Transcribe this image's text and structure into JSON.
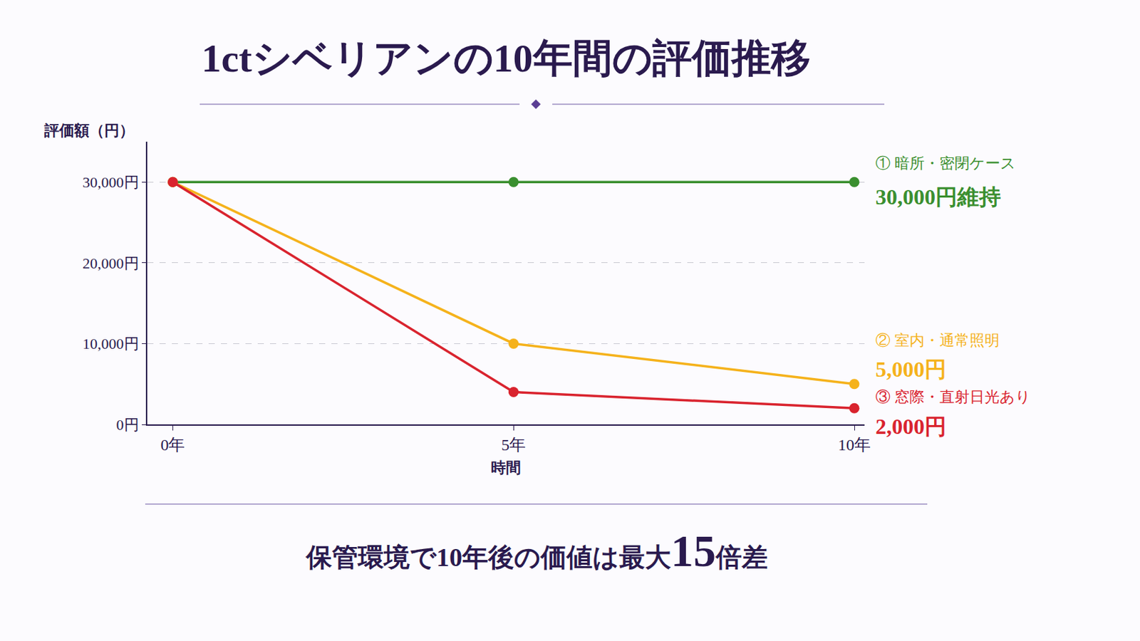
{
  "chart_data": {
    "type": "line",
    "title": "1ctシベリアンの10年間の評価推移",
    "x_label": "時間",
    "y_label": "評価額（円）",
    "categories": [
      "0年",
      "5年",
      "10年"
    ],
    "series": [
      {
        "name": "① 暗所・密閉ケース",
        "end_label": "30,000円維持",
        "color": "#3a8f2f",
        "values": [
          30000,
          30000,
          30000
        ]
      },
      {
        "name": "② 室内・通常照明",
        "end_label": "5,000円",
        "color": "#f5b21b",
        "values": [
          30000,
          10000,
          5000
        ]
      },
      {
        "name": "③ 窓際・直射日光あり",
        "end_label": "2,000円",
        "color": "#d9232e",
        "values": [
          30000,
          4000,
          2000
        ]
      }
    ],
    "ylim": [
      0,
      35000
    ],
    "yticks": [
      {
        "value": 0,
        "label": "0円"
      },
      {
        "value": 10000,
        "label": "10,000円"
      },
      {
        "value": 20000,
        "label": "20,000円"
      },
      {
        "value": 30000,
        "label": "30,000円"
      }
    ],
    "grid": true,
    "marker": "circle",
    "footer": {
      "before": "保管環境で10年後の価値は最大",
      "emphasis": "15",
      "after": "倍差"
    }
  }
}
